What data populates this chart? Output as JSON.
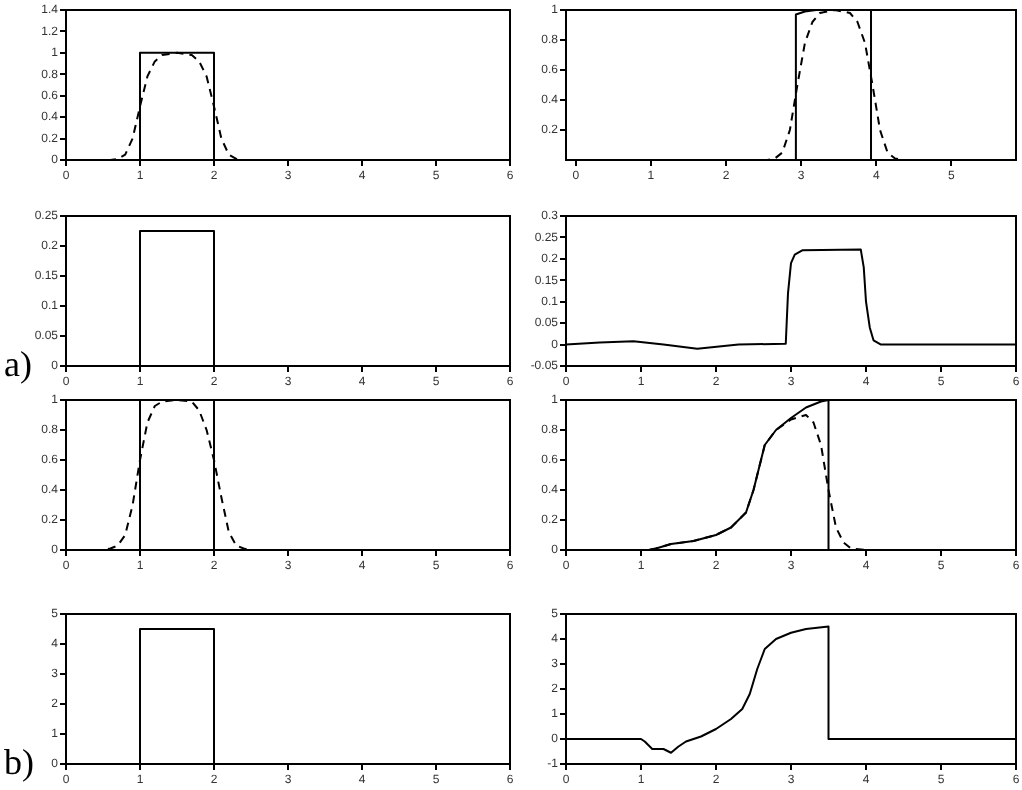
{
  "chart_data": [
    {
      "type": "line",
      "xlim": [
        0,
        6
      ],
      "xticks": [
        0,
        1,
        2,
        3,
        4,
        5,
        6
      ],
      "ylim": [
        0,
        1.4
      ],
      "yticks": [
        0,
        0.2,
        0.4,
        0.6,
        0.8,
        1,
        1.2,
        1.4
      ],
      "series": [
        {
          "color": "#000000",
          "line_style": "solid",
          "x": [
            0,
            1,
            1,
            2,
            2,
            6
          ],
          "values": [
            0,
            0,
            1,
            1,
            0,
            0
          ]
        },
        {
          "color": "#000000",
          "line_style": "dashed",
          "x": [
            0,
            0.6,
            0.7,
            0.8,
            0.9,
            1.0,
            1.1,
            1.2,
            1.3,
            1.5,
            1.7,
            1.8,
            1.9,
            2.0,
            2.1,
            2.2,
            2.3,
            2.4,
            6
          ],
          "values": [
            0,
            0,
            0.01,
            0.05,
            0.2,
            0.5,
            0.78,
            0.92,
            0.98,
            1,
            0.98,
            0.92,
            0.78,
            0.5,
            0.2,
            0.05,
            0.01,
            0,
            0
          ]
        }
      ]
    },
    {
      "type": "line",
      "xlim": [
        -0.13,
        5.86
      ],
      "xticks": [
        0,
        1,
        2,
        3,
        4,
        5
      ],
      "ylim": [
        0,
        1
      ],
      "yticks": [
        0.2,
        0.4,
        0.6,
        0.8,
        1
      ],
      "series": [
        {
          "color": "#000000",
          "line_style": "solid",
          "x": [
            -0.13,
            2.93,
            2.93,
            3.05,
            3.2,
            3.93,
            3.93,
            5.86
          ],
          "values": [
            0,
            0,
            0.97,
            0.99,
            1,
            1,
            0,
            0
          ]
        },
        {
          "color": "#000000",
          "line_style": "dashed",
          "x": [
            -0.13,
            2.55,
            2.65,
            2.75,
            2.85,
            2.95,
            3.05,
            3.15,
            3.25,
            3.45,
            3.65,
            3.75,
            3.85,
            3.95,
            4.05,
            4.15,
            4.25,
            4.35,
            5.86
          ],
          "values": [
            0,
            0,
            0.01,
            0.05,
            0.2,
            0.5,
            0.78,
            0.92,
            0.98,
            1,
            0.98,
            0.92,
            0.78,
            0.5,
            0.2,
            0.05,
            0.01,
            0,
            0
          ]
        }
      ]
    },
    {
      "type": "line",
      "xlim": [
        0,
        6
      ],
      "xticks": [
        0,
        1,
        2,
        3,
        4,
        5,
        6
      ],
      "ylim": [
        0,
        0.25
      ],
      "yticks": [
        0,
        0.05,
        0.1,
        0.15,
        0.2,
        0.25
      ],
      "annotations": [
        "a)"
      ],
      "series": [
        {
          "color": "#000000",
          "line_style": "solid",
          "x": [
            0,
            1,
            1,
            2,
            2,
            6
          ],
          "values": [
            0,
            0,
            0.225,
            0.225,
            0,
            0
          ]
        }
      ]
    },
    {
      "type": "line",
      "xlim": [
        0,
        6
      ],
      "xticks": [
        0,
        1,
        2,
        3,
        4,
        5,
        6
      ],
      "ylim": [
        -0.05,
        0.3
      ],
      "yticks": [
        -0.05,
        0,
        0.05,
        0.1,
        0.15,
        0.2,
        0.25,
        0.3
      ],
      "series": [
        {
          "color": "#000000",
          "line_style": "solid",
          "x": [
            0,
            0.45,
            0.9,
            1.3,
            1.75,
            2.3,
            2.93,
            2.96,
            3.0,
            3.05,
            3.15,
            3.93,
            3.97,
            4.0,
            4.05,
            4.1,
            4.2,
            6
          ],
          "values": [
            0,
            0.005,
            0.008,
            0,
            -0.01,
            0,
            0.002,
            0.12,
            0.19,
            0.21,
            0.22,
            0.222,
            0.18,
            0.1,
            0.04,
            0.01,
            0,
            0
          ]
        }
      ]
    },
    {
      "type": "line",
      "xlim": [
        0,
        6
      ],
      "xticks": [
        0,
        1,
        2,
        3,
        4,
        5,
        6
      ],
      "ylim": [
        0,
        1
      ],
      "yticks": [
        0,
        0.2,
        0.4,
        0.6,
        0.8,
        1
      ],
      "series": [
        {
          "color": "#000000",
          "line_style": "solid",
          "x": [
            0,
            1,
            1,
            2,
            2,
            6
          ],
          "values": [
            0,
            0,
            1,
            1,
            0,
            0
          ]
        },
        {
          "color": "#000000",
          "line_style": "dashed",
          "x": [
            0,
            0.5,
            0.6,
            0.7,
            0.8,
            0.9,
            1.0,
            1.1,
            1.2,
            1.3,
            1.5,
            1.7,
            1.8,
            1.9,
            2.0,
            2.1,
            2.2,
            2.3,
            2.4,
            2.5,
            6
          ],
          "values": [
            0,
            0,
            0.01,
            0.03,
            0.1,
            0.3,
            0.6,
            0.85,
            0.96,
            0.99,
            1,
            0.99,
            0.93,
            0.8,
            0.6,
            0.35,
            0.12,
            0.03,
            0.01,
            0,
            0
          ]
        }
      ]
    },
    {
      "type": "line",
      "xlim": [
        0,
        6
      ],
      "xticks": [
        0,
        1,
        2,
        3,
        4,
        5,
        6
      ],
      "ylim": [
        0,
        1
      ],
      "yticks": [
        0,
        0.2,
        0.4,
        0.6,
        0.8,
        1
      ],
      "series": [
        {
          "color": "#000000",
          "line_style": "solid",
          "x": [
            0,
            1.1,
            1.2,
            1.4,
            1.7,
            2.0,
            2.2,
            2.4,
            2.5,
            2.55,
            2.65,
            2.8,
            3.0,
            3.2,
            3.4,
            3.5,
            3.5,
            6
          ],
          "values": [
            0,
            0,
            0.01,
            0.04,
            0.06,
            0.1,
            0.15,
            0.25,
            0.4,
            0.5,
            0.7,
            0.8,
            0.88,
            0.95,
            0.99,
            1,
            0,
            0
          ]
        },
        {
          "color": "#000000",
          "line_style": "dashed",
          "x": [
            0,
            1.1,
            1.2,
            1.4,
            1.7,
            2.0,
            2.2,
            2.4,
            2.5,
            2.55,
            2.65,
            2.8,
            3.0,
            3.2,
            3.3,
            3.4,
            3.5,
            3.6,
            3.7,
            3.8,
            4.0,
            6
          ],
          "values": [
            0,
            0,
            0.01,
            0.04,
            0.06,
            0.1,
            0.15,
            0.25,
            0.4,
            0.5,
            0.7,
            0.8,
            0.87,
            0.9,
            0.85,
            0.7,
            0.4,
            0.15,
            0.05,
            0.01,
            0,
            0
          ]
        }
      ]
    },
    {
      "type": "line",
      "xlim": [
        0,
        6
      ],
      "xticks": [
        0,
        1,
        2,
        3,
        4,
        5,
        6
      ],
      "ylim": [
        0,
        5
      ],
      "yticks": [
        0,
        1,
        2,
        3,
        4,
        5
      ],
      "annotations": [
        "b)"
      ],
      "series": [
        {
          "color": "#000000",
          "line_style": "solid",
          "x": [
            0,
            1,
            1,
            2,
            2,
            6
          ],
          "values": [
            0,
            0,
            4.5,
            4.5,
            0,
            0
          ]
        }
      ]
    },
    {
      "type": "line",
      "xlim": [
        0,
        6
      ],
      "xticks": [
        0,
        1,
        2,
        3,
        4,
        5,
        6
      ],
      "ylim": [
        -1,
        5
      ],
      "yticks": [
        -1,
        0,
        1,
        2,
        3,
        4,
        5
      ],
      "series": [
        {
          "color": "#000000",
          "line_style": "solid",
          "x": [
            0,
            1.0,
            1.05,
            1.15,
            1.3,
            1.4,
            1.5,
            1.6,
            1.8,
            2.0,
            2.2,
            2.35,
            2.45,
            2.55,
            2.65,
            2.8,
            3.0,
            3.2,
            3.5,
            3.5,
            6
          ],
          "values": [
            0,
            0,
            -0.1,
            -0.4,
            -0.4,
            -0.55,
            -0.3,
            -0.1,
            0.1,
            0.4,
            0.8,
            1.2,
            1.8,
            2.8,
            3.6,
            4.0,
            4.25,
            4.4,
            4.5,
            0,
            0
          ]
        }
      ]
    }
  ]
}
